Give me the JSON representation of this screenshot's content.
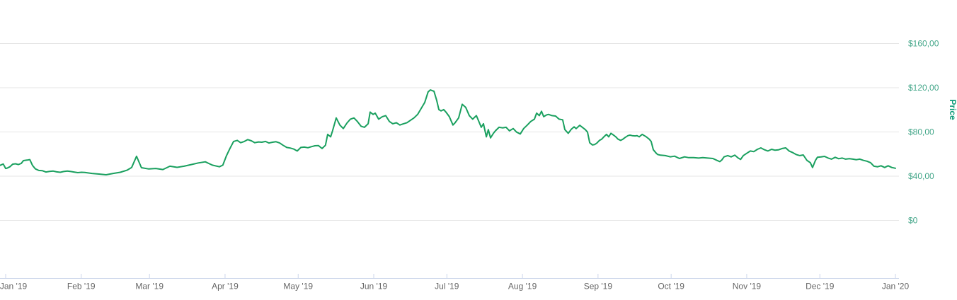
{
  "page": {
    "background": "#ffffff"
  },
  "chart": {
    "colors": {
      "line": "#1aa05f",
      "grid": "#e6e6e6",
      "axis": "#ccd6eb",
      "x_labels": "#666666",
      "y_labels": "#45a78a",
      "y_title": "#0f9b7a"
    },
    "y_axis": {
      "title": "Price",
      "ticks": [
        {
          "label": "$0",
          "value": 0
        },
        {
          "label": "$40,00",
          "value": 40
        },
        {
          "label": "$80,00",
          "value": 80
        },
        {
          "label": "$120,00",
          "value": 120
        },
        {
          "label": "$160,00",
          "value": 160
        }
      ]
    },
    "x_axis": {
      "ticks": [
        {
          "label": "Jan '19",
          "day": 0
        },
        {
          "label": "Feb '19",
          "day": 31
        },
        {
          "label": "Mar '19",
          "day": 59
        },
        {
          "label": "Apr '19",
          "day": 90
        },
        {
          "label": "May '19",
          "day": 120
        },
        {
          "label": "Jun '19",
          "day": 151
        },
        {
          "label": "Jul '19",
          "day": 181
        },
        {
          "label": "Aug '19",
          "day": 212
        },
        {
          "label": "Sep '19",
          "day": 243
        },
        {
          "label": "Oct '19",
          "day": 273
        },
        {
          "label": "Nov '19",
          "day": 304
        },
        {
          "label": "Dec '19",
          "day": 334
        },
        {
          "label": "Jan '20",
          "day": 365
        }
      ]
    }
  },
  "chart_data": {
    "type": "line",
    "title": "",
    "xlabel": "",
    "ylabel": "Price",
    "x_unit": "days since 2019-01-01",
    "xlim": [
      -2.3,
      365
    ],
    "ylim": [
      0,
      160
    ],
    "y_ticks": [
      0,
      40,
      80,
      120,
      160
    ],
    "grid": "horizontal",
    "legend": "none",
    "series": [
      {
        "name": "Price",
        "color": "#1aa05f",
        "points": [
          [
            -2.3,
            49.8
          ],
          [
            -1,
            51
          ],
          [
            0,
            47
          ],
          [
            0.6,
            47.3
          ],
          [
            1.7,
            48.5
          ],
          [
            2.9,
            50.9
          ],
          [
            4.1,
            51.2
          ],
          [
            5.2,
            50.5
          ],
          [
            6.4,
            51.5
          ],
          [
            7.3,
            54.1
          ],
          [
            8.7,
            54.5
          ],
          [
            9.9,
            55
          ],
          [
            11,
            49.8
          ],
          [
            12.2,
            46.6
          ],
          [
            13.6,
            45.2
          ],
          [
            15.1,
            44.9
          ],
          [
            16.5,
            43.8
          ],
          [
            18,
            44.3
          ],
          [
            19.5,
            44.6
          ],
          [
            20.9,
            43.9
          ],
          [
            22.4,
            43.5
          ],
          [
            23.8,
            44.2
          ],
          [
            25.3,
            44.7
          ],
          [
            26.7,
            44.2
          ],
          [
            28.2,
            43.7
          ],
          [
            29.6,
            43.2
          ],
          [
            31.1,
            43.5
          ],
          [
            32.5,
            43.3
          ],
          [
            35.4,
            42.5
          ],
          [
            38.3,
            41.9
          ],
          [
            41.2,
            41.3
          ],
          [
            44.1,
            42.5
          ],
          [
            47,
            43.5
          ],
          [
            49.9,
            45.5
          ],
          [
            51.7,
            47.9
          ],
          [
            53.7,
            58
          ],
          [
            55.7,
            47.7
          ],
          [
            58.7,
            46.5
          ],
          [
            61.6,
            47
          ],
          [
            64.5,
            46
          ],
          [
            67.4,
            49
          ],
          [
            70.3,
            48
          ],
          [
            73.2,
            49
          ],
          [
            76.1,
            50.5
          ],
          [
            79,
            52
          ],
          [
            81.9,
            53
          ],
          [
            83.3,
            51.5
          ],
          [
            84.8,
            50
          ],
          [
            87.7,
            48.5
          ],
          [
            89.1,
            50
          ],
          [
            90.6,
            58.6
          ],
          [
            92,
            65
          ],
          [
            93.5,
            71.4
          ],
          [
            95,
            72.4
          ],
          [
            96.4,
            70.3
          ],
          [
            97.9,
            71.4
          ],
          [
            99.3,
            73.1
          ],
          [
            100.8,
            72
          ],
          [
            102.2,
            70.3
          ],
          [
            103.7,
            71
          ],
          [
            105.1,
            70.7
          ],
          [
            106.6,
            71.4
          ],
          [
            108,
            70
          ],
          [
            109.5,
            70.7
          ],
          [
            110.9,
            71.2
          ],
          [
            112.4,
            70
          ],
          [
            113.8,
            68
          ],
          [
            115.3,
            66
          ],
          [
            116.7,
            65.5
          ],
          [
            118.2,
            64.5
          ],
          [
            119.6,
            62.8
          ],
          [
            121.1,
            66
          ],
          [
            122.5,
            66.3
          ],
          [
            124,
            65.7
          ],
          [
            125.4,
            66.7
          ],
          [
            126.9,
            67.5
          ],
          [
            128.3,
            67.7
          ],
          [
            129.8,
            65
          ],
          [
            131.2,
            68
          ],
          [
            132.1,
            77.8
          ],
          [
            133.3,
            75.6
          ],
          [
            134.1,
            81
          ],
          [
            135.6,
            92.7
          ],
          [
            137.1,
            86.3
          ],
          [
            138.5,
            83.1
          ],
          [
            140,
            88
          ],
          [
            141.4,
            91.6
          ],
          [
            142.9,
            92.7
          ],
          [
            144.3,
            89.5
          ],
          [
            145.8,
            85.2
          ],
          [
            147.2,
            84.2
          ],
          [
            148.7,
            87.4
          ],
          [
            149.5,
            98
          ],
          [
            150.7,
            95.9
          ],
          [
            151.6,
            97
          ],
          [
            153,
            91.6
          ],
          [
            154.5,
            93.8
          ],
          [
            155.9,
            94.8
          ],
          [
            157.4,
            89.5
          ],
          [
            158.8,
            87.4
          ],
          [
            160.3,
            88.4
          ],
          [
            161.7,
            86.3
          ],
          [
            163.2,
            87.4
          ],
          [
            164.6,
            88.4
          ],
          [
            166.1,
            90.6
          ],
          [
            167.5,
            92.7
          ],
          [
            169,
            95.9
          ],
          [
            171.9,
            106.6
          ],
          [
            173.3,
            116.2
          ],
          [
            174.2,
            118
          ],
          [
            175.7,
            116.8
          ],
          [
            176.8,
            108.7
          ],
          [
            177.7,
            100.2
          ],
          [
            178.6,
            99.1
          ],
          [
            179.7,
            100.2
          ],
          [
            180.6,
            98
          ],
          [
            182,
            93.8
          ],
          [
            183.5,
            86.3
          ],
          [
            184.4,
            88.4
          ],
          [
            185.8,
            92.7
          ],
          [
            187.3,
            105
          ],
          [
            188.7,
            102.3
          ],
          [
            190.2,
            94.8
          ],
          [
            191.6,
            91.6
          ],
          [
            193.1,
            94.8
          ],
          [
            195.1,
            84.2
          ],
          [
            196,
            87.4
          ],
          [
            197.2,
            75.6
          ],
          [
            198,
            82.1
          ],
          [
            198.9,
            74.6
          ],
          [
            200.1,
            78.8
          ],
          [
            200.9,
            81
          ],
          [
            202.4,
            84.2
          ],
          [
            203.8,
            83.7
          ],
          [
            205.3,
            84.2
          ],
          [
            206.7,
            81
          ],
          [
            208.2,
            83.1
          ],
          [
            209.6,
            79.9
          ],
          [
            211.1,
            78.2
          ],
          [
            212.5,
            83.1
          ],
          [
            214,
            86.3
          ],
          [
            215.4,
            89.5
          ],
          [
            216.9,
            91.6
          ],
          [
            217.8,
            97
          ],
          [
            218.9,
            94.8
          ],
          [
            219.8,
            98.7
          ],
          [
            220.7,
            93.8
          ],
          [
            221.8,
            95.3
          ],
          [
            222.7,
            95.9
          ],
          [
            224.1,
            94.8
          ],
          [
            225.6,
            94.4
          ],
          [
            227,
            91.6
          ],
          [
            228.5,
            91
          ],
          [
            229.4,
            82.1
          ],
          [
            230.8,
            78.8
          ],
          [
            232,
            82.4
          ],
          [
            233.2,
            84.6
          ],
          [
            234,
            83
          ],
          [
            235.5,
            86
          ],
          [
            236.7,
            84
          ],
          [
            237.8,
            82.1
          ],
          [
            238.7,
            79.9
          ],
          [
            239.6,
            70.3
          ],
          [
            240.7,
            68.2
          ],
          [
            241.6,
            68.6
          ],
          [
            242.5,
            69.9
          ],
          [
            243.6,
            72.4
          ],
          [
            244.5,
            73.5
          ],
          [
            245.4,
            75.6
          ],
          [
            246.5,
            77.8
          ],
          [
            247.4,
            75.6
          ],
          [
            248.3,
            78.8
          ],
          [
            249.4,
            77.1
          ],
          [
            250.3,
            75.6
          ],
          [
            251.2,
            73.5
          ],
          [
            252.3,
            72.4
          ],
          [
            253.2,
            73.5
          ],
          [
            254.1,
            75
          ],
          [
            255.3,
            76.7
          ],
          [
            256.1,
            77.1
          ],
          [
            257,
            76.7
          ],
          [
            258.2,
            76.4
          ],
          [
            259,
            76.7
          ],
          [
            259.9,
            75.6
          ],
          [
            261.1,
            77.8
          ],
          [
            262,
            76.7
          ],
          [
            262.8,
            75.6
          ],
          [
            264,
            73.5
          ],
          [
            264.8,
            71.4
          ],
          [
            265.7,
            63.9
          ],
          [
            266.9,
            60.7
          ],
          [
            267.5,
            59.6
          ],
          [
            268.6,
            59
          ],
          [
            270.6,
            58.6
          ],
          [
            272.7,
            57.5
          ],
          [
            274.4,
            58.1
          ],
          [
            276.4,
            56
          ],
          [
            278.5,
            57.5
          ],
          [
            280.2,
            56.8
          ],
          [
            282.2,
            56.8
          ],
          [
            284.3,
            56.4
          ],
          [
            286,
            56.8
          ],
          [
            288,
            56.4
          ],
          [
            290.1,
            56
          ],
          [
            291.8,
            54.3
          ],
          [
            293,
            53.2
          ],
          [
            293.8,
            54.7
          ],
          [
            294.7,
            57.5
          ],
          [
            296.2,
            58.6
          ],
          [
            297.6,
            57.5
          ],
          [
            299.1,
            59
          ],
          [
            300.5,
            56.4
          ],
          [
            301.5,
            55.2
          ],
          [
            302.6,
            58.6
          ],
          [
            304,
            60.7
          ],
          [
            305.5,
            62.8
          ],
          [
            306.9,
            62.2
          ],
          [
            308.4,
            64.3
          ],
          [
            309.8,
            65.6
          ],
          [
            311.3,
            63.9
          ],
          [
            312.7,
            62.8
          ],
          [
            314.2,
            64.3
          ],
          [
            315.6,
            63.5
          ],
          [
            317.1,
            63.9
          ],
          [
            318.5,
            65
          ],
          [
            320,
            65.6
          ],
          [
            321.4,
            62.8
          ],
          [
            322.9,
            61.3
          ],
          [
            324.3,
            59.6
          ],
          [
            325.8,
            58.6
          ],
          [
            327.2,
            59.2
          ],
          [
            328.7,
            54.3
          ],
          [
            330.1,
            52.2
          ],
          [
            331,
            47.9
          ],
          [
            332.2,
            54.3
          ],
          [
            333,
            57.1
          ],
          [
            334.5,
            57.5
          ],
          [
            335.9,
            57.9
          ],
          [
            337.4,
            56.4
          ],
          [
            338.8,
            55.4
          ],
          [
            340.3,
            57.1
          ],
          [
            341.7,
            55.8
          ],
          [
            343.2,
            56.4
          ],
          [
            344.6,
            55.4
          ],
          [
            346.1,
            55.8
          ],
          [
            347.5,
            55.4
          ],
          [
            349,
            54.9
          ],
          [
            350.4,
            55.4
          ],
          [
            351.9,
            54.3
          ],
          [
            353.3,
            53.6
          ],
          [
            354.8,
            52.2
          ],
          [
            356.2,
            49
          ],
          [
            357.7,
            48.5
          ],
          [
            359.1,
            49.4
          ],
          [
            360.6,
            47.9
          ],
          [
            362,
            49.4
          ],
          [
            363.5,
            47.9
          ],
          [
            365,
            47.2
          ]
        ]
      }
    ]
  }
}
